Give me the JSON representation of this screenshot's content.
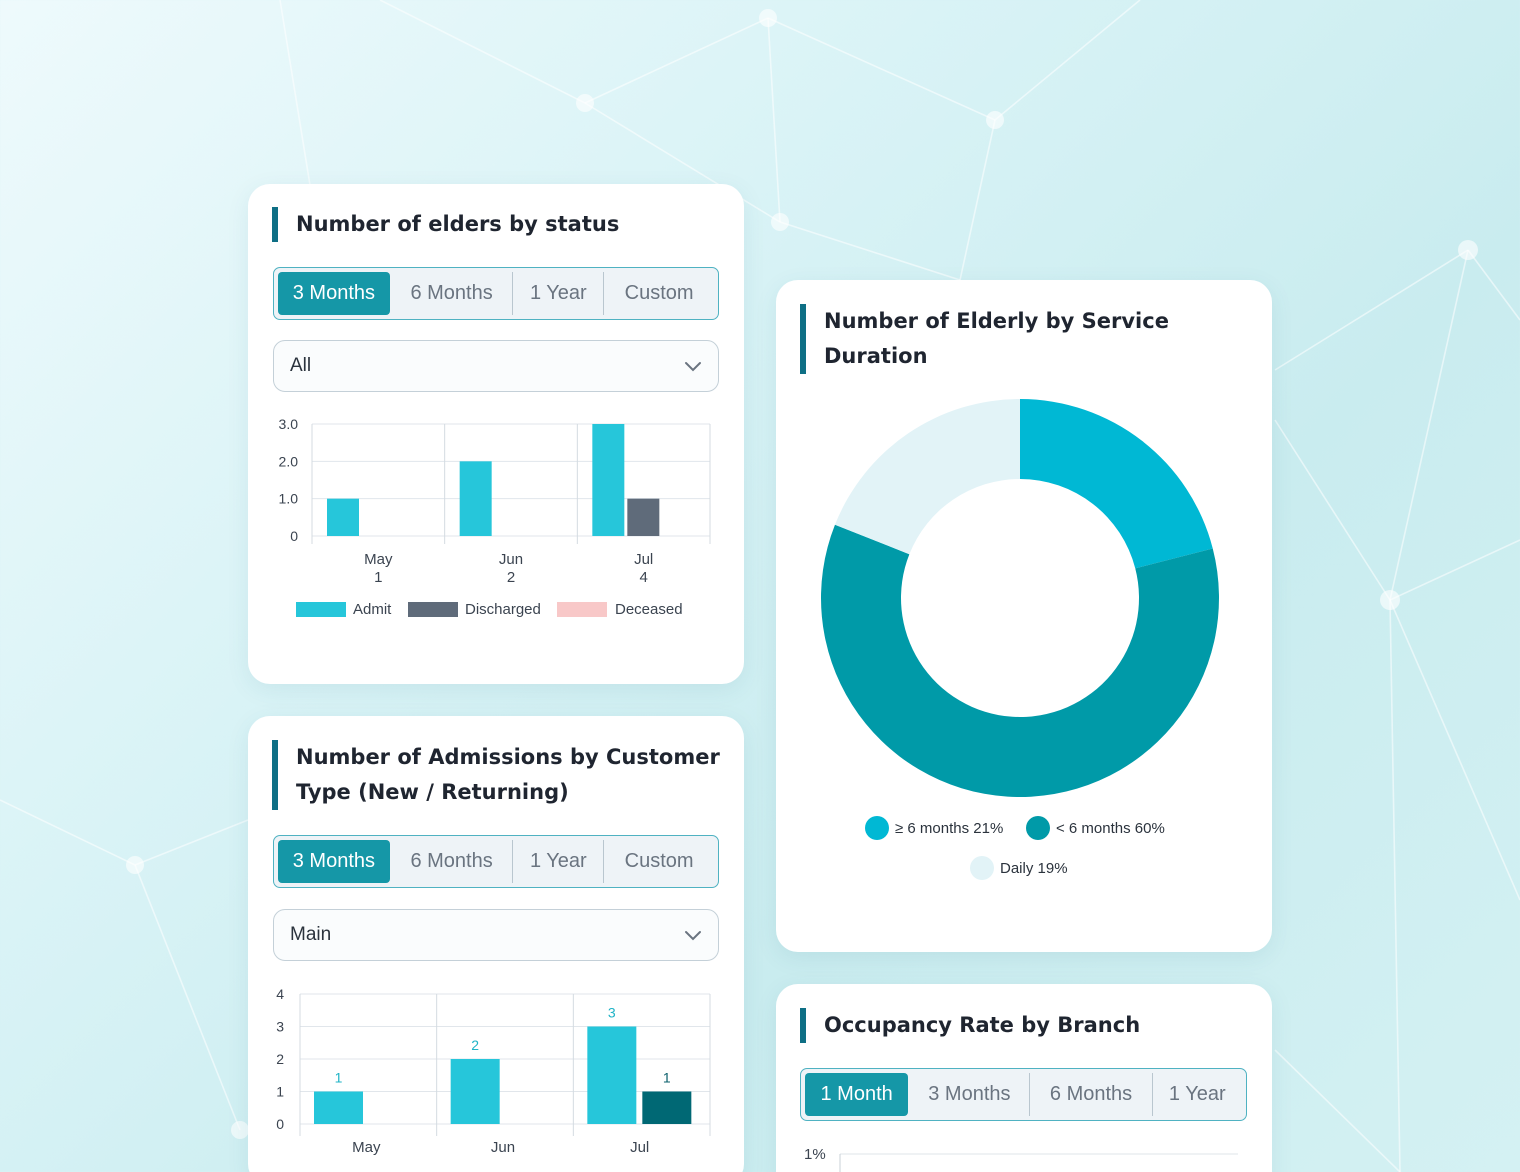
{
  "colors": {
    "accent": "#1597a7",
    "admit": "#26c6da",
    "discharged": "#5f6b7a",
    "deceased": "#f8c8c8",
    "new": "#26c6da",
    "returning": "#006874",
    "donut_ge6": "#00b8d4",
    "donut_lt6": "#009aa8",
    "donut_daily": "#e2f3f7"
  },
  "icons": {
    "dropdown": "chevron-down-icon"
  },
  "card_status": {
    "title": "Number of elders by status",
    "tabs": [
      "3 Months",
      "6 Months",
      "1 Year",
      "Custom"
    ],
    "active_tab": "3 Months",
    "select_value": "All"
  },
  "card_admissions": {
    "title_line1": "Number of Admissions by Customer",
    "title_line2": "Type (New / Returning)",
    "tabs": [
      "3 Months",
      "6 Months",
      "1 Year",
      "Custom"
    ],
    "active_tab": "3 Months",
    "select_value": "Main"
  },
  "card_duration": {
    "title_line1": "Number of Elderly by Service",
    "title_line2": "Duration"
  },
  "card_occupancy": {
    "title": "Occupancy Rate by Branch",
    "tabs": [
      "1 Month",
      "3 Months",
      "6 Months",
      "1 Year"
    ],
    "active_tab": "1 Month",
    "y_tick_top": "1%"
  },
  "chart_data": [
    {
      "type": "bar",
      "title": "Number of elders by status",
      "categories": [
        "May",
        "Jun",
        "Jul"
      ],
      "category_totals": [
        "1",
        "2",
        "4"
      ],
      "series": [
        {
          "name": "Admit",
          "values": [
            1,
            2,
            3
          ]
        },
        {
          "name": "Discharged",
          "values": [
            0,
            0,
            1
          ]
        },
        {
          "name": "Deceased",
          "values": [
            0,
            0,
            0
          ]
        }
      ],
      "ylim": [
        0,
        3
      ],
      "yticks": [
        "0",
        "1.0",
        "2.0",
        "3.0"
      ],
      "grid": true,
      "legend": "bottom"
    },
    {
      "type": "bar",
      "title": "Number of Admissions by Customer Type (New / Returning)",
      "categories": [
        "May",
        "Jun",
        "Jul"
      ],
      "series": [
        {
          "values": [
            1,
            2,
            3
          ]
        },
        {
          "values": [
            0,
            0,
            1
          ]
        }
      ],
      "ylim": [
        0,
        4
      ],
      "yticks": [
        "0",
        "1",
        "2",
        "3",
        "4"
      ],
      "grid": true
    },
    {
      "type": "pie",
      "title": "Number of Elderly by Service Duration",
      "slices": [
        {
          "label": "≥ 6 months 21%",
          "value": 21
        },
        {
          "label": "< 6 months 60%",
          "value": 60
        },
        {
          "label": "Daily 19%",
          "value": 19
        }
      ],
      "legend": "bottom"
    }
  ]
}
